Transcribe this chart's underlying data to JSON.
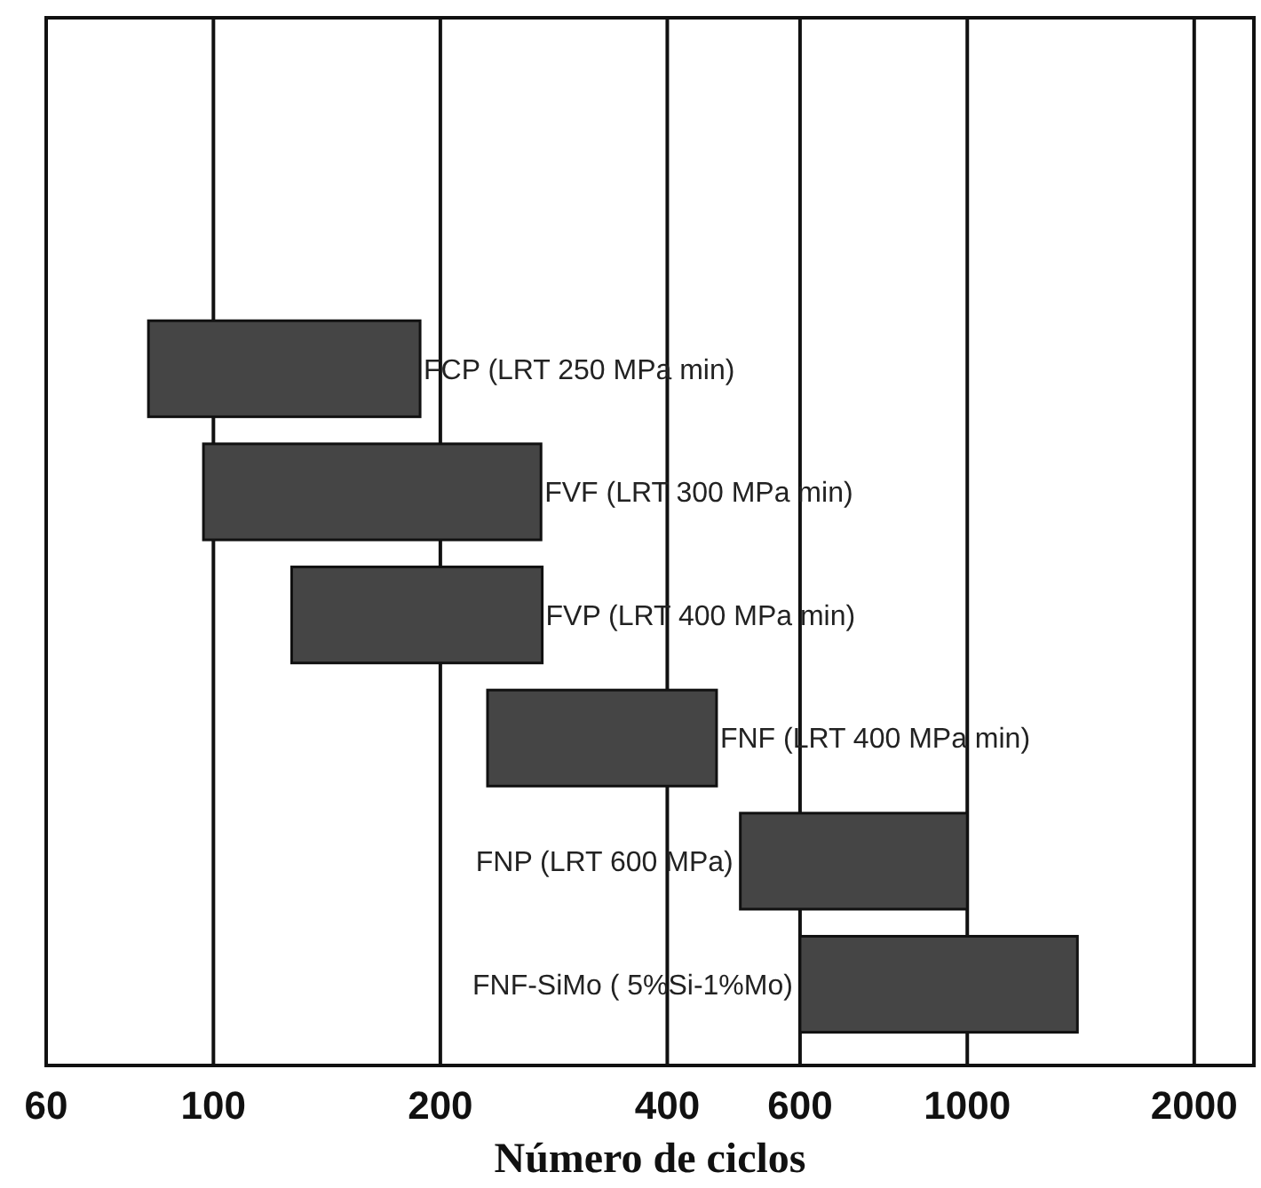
{
  "chart_data": {
    "type": "bar",
    "orientation": "horizontal",
    "xlabel": "Número de ciclos",
    "categories": [
      "FCP (LRT 250 MPa min)",
      "FVF (LRT 300 MPa min)",
      "FVP (LRT 400 MPa min)",
      "FNF (LRT 400 MPa min)",
      "FNP (LRT 600 MPa)",
      "FNF-SiMo ( 5%Si-1%Mo)"
    ],
    "base": [
      82,
      97,
      127,
      231,
      500,
      600
    ],
    "values": [
      106,
      175,
      146,
      234,
      500,
      800
    ],
    "color": "#454545",
    "log": "x",
    "xlim": [
      60,
      2400
    ],
    "xticks": [
      60,
      100,
      200,
      400,
      600,
      1000,
      2000
    ],
    "grid": "x"
  }
}
